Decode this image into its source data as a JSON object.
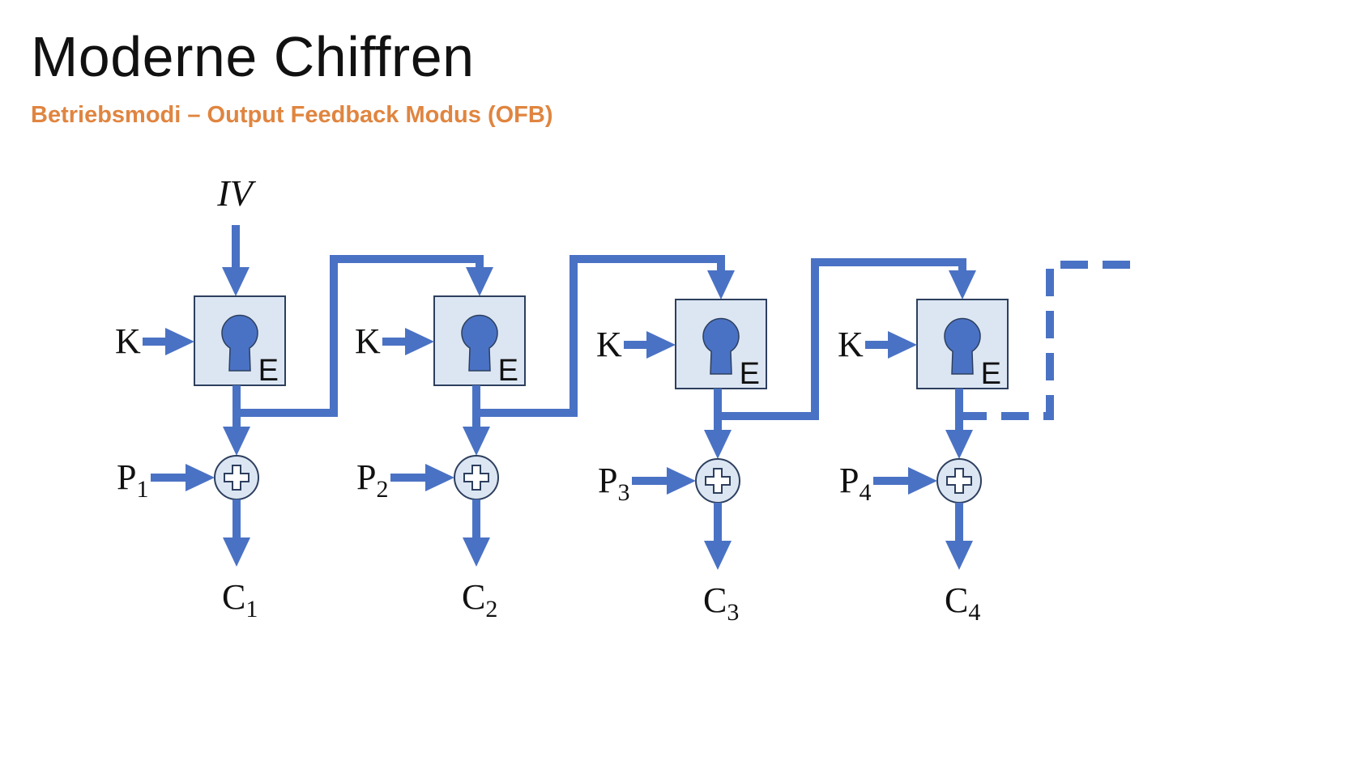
{
  "slide": {
    "title": "Moderne Chiffren",
    "subtitle": "Betriebsmodi – Output Feedback Modus (OFB)"
  },
  "diagram": {
    "iv_label": "IV",
    "colors": {
      "arrow": "#4a72c4",
      "box_fill": "#dce6f3",
      "box_stroke": "#2d3f5e",
      "lock": "#4a72c4",
      "xor_fill": "#dce6f3",
      "xor_stroke": "#2d3f5e"
    },
    "stages": [
      {
        "key": "K",
        "cipher": "E",
        "plain": "P",
        "plain_index": "1",
        "out": "C",
        "out_index": "1"
      },
      {
        "key": "K",
        "cipher": "E",
        "plain": "P",
        "plain_index": "2",
        "out": "C",
        "out_index": "2"
      },
      {
        "key": "K",
        "cipher": "E",
        "plain": "P",
        "plain_index": "3",
        "out": "C",
        "out_index": "3"
      },
      {
        "key": "K",
        "cipher": "E",
        "plain": "P",
        "plain_index": "4",
        "out": "C",
        "out_index": "4"
      }
    ],
    "icons": {
      "lock": "keyhole-icon",
      "xor": "xor-plus-icon"
    }
  }
}
